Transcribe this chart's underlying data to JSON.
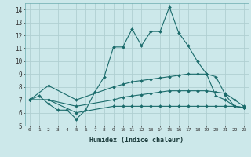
{
  "title": "",
  "xlabel": "Humidex (Indice chaleur)",
  "ylabel": "",
  "background_color": "#cce8ea",
  "grid_color": "#b0cfd2",
  "line_color": "#1a6b6b",
  "xlim": [
    -0.5,
    23.5
  ],
  "ylim": [
    5,
    14.5
  ],
  "yticks": [
    5,
    6,
    7,
    8,
    9,
    10,
    11,
    12,
    13,
    14
  ],
  "xticks": [
    0,
    1,
    2,
    3,
    4,
    5,
    6,
    7,
    8,
    9,
    10,
    11,
    12,
    13,
    14,
    15,
    16,
    17,
    18,
    19,
    20,
    21,
    22,
    23
  ],
  "line1_x": [
    0,
    1,
    2,
    3,
    4,
    5,
    6,
    7,
    8,
    9,
    10,
    11,
    12,
    13,
    14,
    15,
    16,
    17,
    18,
    19,
    20,
    21,
    22,
    23
  ],
  "line1_y": [
    7.0,
    7.3,
    6.7,
    6.2,
    6.2,
    5.5,
    6.2,
    7.6,
    8.8,
    11.1,
    11.1,
    12.5,
    11.2,
    12.3,
    12.3,
    14.2,
    12.2,
    11.2,
    10.0,
    9.0,
    7.3,
    7.0,
    6.5,
    6.4
  ],
  "line2_x": [
    0,
    2,
    5,
    9,
    10,
    11,
    12,
    13,
    14,
    15,
    16,
    17,
    18,
    19,
    20,
    21,
    22,
    23
  ],
  "line2_y": [
    7.0,
    8.1,
    7.0,
    8.0,
    8.2,
    8.4,
    8.5,
    8.6,
    8.7,
    8.8,
    8.9,
    9.0,
    9.0,
    9.0,
    8.8,
    7.4,
    6.5,
    6.4
  ],
  "line3_x": [
    0,
    2,
    5,
    9,
    10,
    11,
    12,
    13,
    14,
    15,
    16,
    17,
    18,
    19,
    20,
    21,
    22,
    23
  ],
  "line3_y": [
    7.0,
    7.0,
    6.5,
    7.0,
    7.2,
    7.3,
    7.4,
    7.5,
    7.6,
    7.7,
    7.7,
    7.7,
    7.7,
    7.7,
    7.6,
    7.5,
    7.0,
    6.5
  ],
  "line4_x": [
    0,
    2,
    5,
    9,
    10,
    11,
    12,
    13,
    14,
    15,
    16,
    17,
    18,
    19,
    20,
    21,
    22,
    23
  ],
  "line4_y": [
    7.0,
    7.0,
    6.0,
    6.5,
    6.5,
    6.5,
    6.5,
    6.5,
    6.5,
    6.5,
    6.5,
    6.5,
    6.5,
    6.5,
    6.5,
    6.5,
    6.5,
    6.4
  ]
}
